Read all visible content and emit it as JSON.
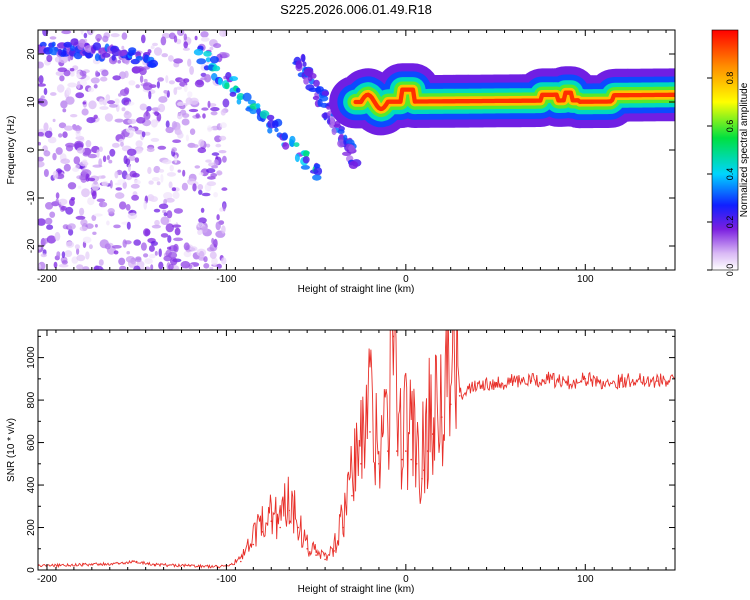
{
  "figure_title": "S225.2026.006.01.49.R18",
  "chart_data": [
    {
      "type": "heatmap",
      "title": "S225.2026.006.01.49.R18",
      "xlabel": "Height of straight line (km)",
      "ylabel": "Frequency (Hz)",
      "xlim": [
        -205,
        150
      ],
      "ylim": [
        -25,
        25
      ],
      "xticks": [
        -200,
        -100,
        0,
        100
      ],
      "yticks": [
        -20,
        -10,
        0,
        10,
        20
      ],
      "colorbar": {
        "label": "Normalized spectral amplitude",
        "range": [
          0,
          1
        ],
        "ticks": [
          0,
          0.2,
          0.4,
          0.6,
          0.8
        ],
        "tick_labels": [
          "0.0",
          "0.2",
          "0.4",
          "0.6",
          "0.8"
        ]
      },
      "features": [
        {
          "name": "scattered noise",
          "x_range": [
            -205,
            -100
          ],
          "y_range": [
            -25,
            25
          ],
          "amplitude": 0.08
        },
        {
          "name": "descending trace 1",
          "from": [
            -205,
            22
          ],
          "to": [
            -140,
            19
          ],
          "amplitude": 0.2
        },
        {
          "name": "descending trace 2",
          "from": [
            -115,
            20
          ],
          "to": [
            -48,
            -5
          ],
          "amplitude": 0.3
        },
        {
          "name": "descending trace 3",
          "from": [
            -60,
            19
          ],
          "to": [
            -28,
            -2
          ],
          "amplitude": 0.2
        },
        {
          "name": "carrier line",
          "from": [
            -28,
            10
          ],
          "to": [
            150,
            10.5
          ],
          "amplitude": 0.95
        }
      ]
    },
    {
      "type": "line",
      "xlabel": "Height of straight line (km)",
      "ylabel": "SNR (10 * v/v)",
      "xlim": [
        -205,
        150
      ],
      "ylim": [
        0,
        1130
      ],
      "xticks": [
        -200,
        -100,
        0,
        100
      ],
      "yticks": [
        0,
        200,
        400,
        600,
        800,
        1000
      ],
      "color": "#e8302a",
      "series": [
        {
          "name": "SNR",
          "x": [
            -205,
            -180,
            -160,
            -150,
            -140,
            -120,
            -105,
            -100,
            -92,
            -85,
            -80,
            -75,
            -70,
            -65,
            -60,
            -55,
            -50,
            -45,
            -40,
            -35,
            -30,
            -25,
            -20,
            -15,
            -10,
            -7,
            -5,
            -2,
            0,
            3,
            6,
            9,
            10,
            12,
            15,
            20,
            25,
            30,
            35,
            40,
            50,
            60,
            70,
            80,
            90,
            100,
            110,
            120,
            130,
            140,
            150
          ],
          "values": [
            20,
            25,
            30,
            40,
            25,
            20,
            15,
            20,
            40,
            120,
            180,
            230,
            200,
            280,
            200,
            100,
            70,
            50,
            90,
            200,
            350,
            500,
            650,
            500,
            560,
            1100,
            560,
            520,
            560,
            520,
            500,
            430,
            470,
            560,
            640,
            720,
            780,
            820,
            860,
            880,
            880,
            890,
            890,
            900,
            880,
            900,
            880,
            890,
            900,
            890,
            900
          ]
        }
      ]
    }
  ]
}
